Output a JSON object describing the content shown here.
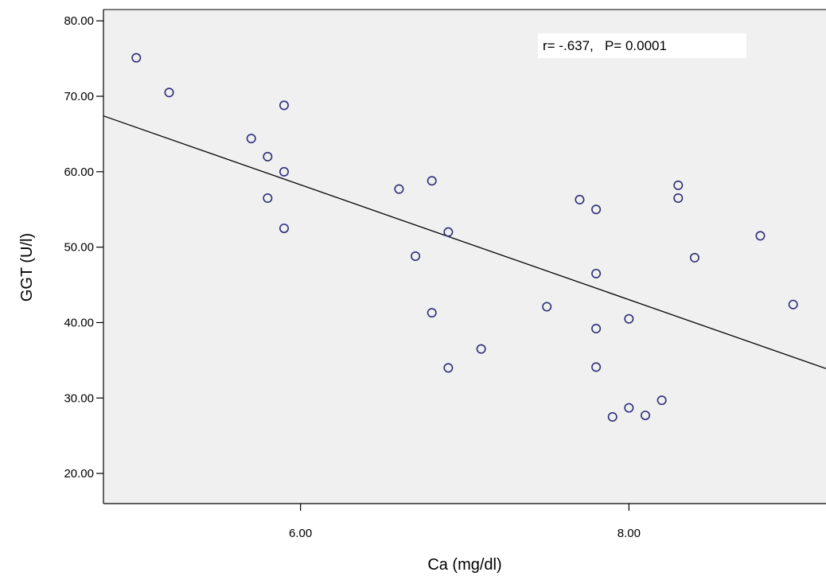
{
  "chart_data": {
    "type": "scatter",
    "xlabel": "Ca (mg/dl)",
    "ylabel": "GGT (U/l)",
    "xlim": [
      4.8,
      9.2
    ],
    "ylim": [
      16.0,
      81.5
    ],
    "x_ticks": [
      6.0,
      8.0
    ],
    "x_tick_labels": [
      "6.00",
      "8.00"
    ],
    "y_ticks": [
      20,
      30,
      40,
      50,
      60,
      70,
      80
    ],
    "y_tick_labels": [
      "20.00",
      "30.00",
      "40.00",
      "50.00",
      "60.00",
      "70.00",
      "80.00"
    ],
    "grid": false,
    "annotation": "r= -.637,   P= 0.0001",
    "colors": {
      "plot_background": "#f0f0f0",
      "marker": "#2d2d7a",
      "fit_line": "#000000"
    },
    "points": [
      {
        "x": 5.0,
        "y": 75.1
      },
      {
        "x": 5.2,
        "y": 70.5
      },
      {
        "x": 5.7,
        "y": 64.4
      },
      {
        "x": 5.8,
        "y": 62.0
      },
      {
        "x": 5.8,
        "y": 56.5
      },
      {
        "x": 5.9,
        "y": 68.8
      },
      {
        "x": 5.9,
        "y": 60.0
      },
      {
        "x": 5.9,
        "y": 52.5
      },
      {
        "x": 6.6,
        "y": 57.7
      },
      {
        "x": 6.7,
        "y": 48.8
      },
      {
        "x": 6.8,
        "y": 58.8
      },
      {
        "x": 6.8,
        "y": 41.3
      },
      {
        "x": 6.9,
        "y": 52.0
      },
      {
        "x": 6.9,
        "y": 34.0
      },
      {
        "x": 7.1,
        "y": 36.5
      },
      {
        "x": 7.5,
        "y": 42.1
      },
      {
        "x": 7.7,
        "y": 56.3
      },
      {
        "x": 7.8,
        "y": 55.0
      },
      {
        "x": 7.8,
        "y": 46.5
      },
      {
        "x": 7.8,
        "y": 39.2
      },
      {
        "x": 7.8,
        "y": 34.1
      },
      {
        "x": 7.9,
        "y": 27.5
      },
      {
        "x": 8.0,
        "y": 40.5
      },
      {
        "x": 8.0,
        "y": 28.7
      },
      {
        "x": 8.1,
        "y": 27.7
      },
      {
        "x": 8.2,
        "y": 29.7
      },
      {
        "x": 8.3,
        "y": 58.2
      },
      {
        "x": 8.3,
        "y": 56.5
      },
      {
        "x": 8.4,
        "y": 48.6
      },
      {
        "x": 8.8,
        "y": 51.5
      },
      {
        "x": 9.0,
        "y": 42.4
      }
    ],
    "fit_line": {
      "x0": 4.8,
      "y0": 67.4,
      "x1": 9.2,
      "y1": 33.9
    }
  }
}
